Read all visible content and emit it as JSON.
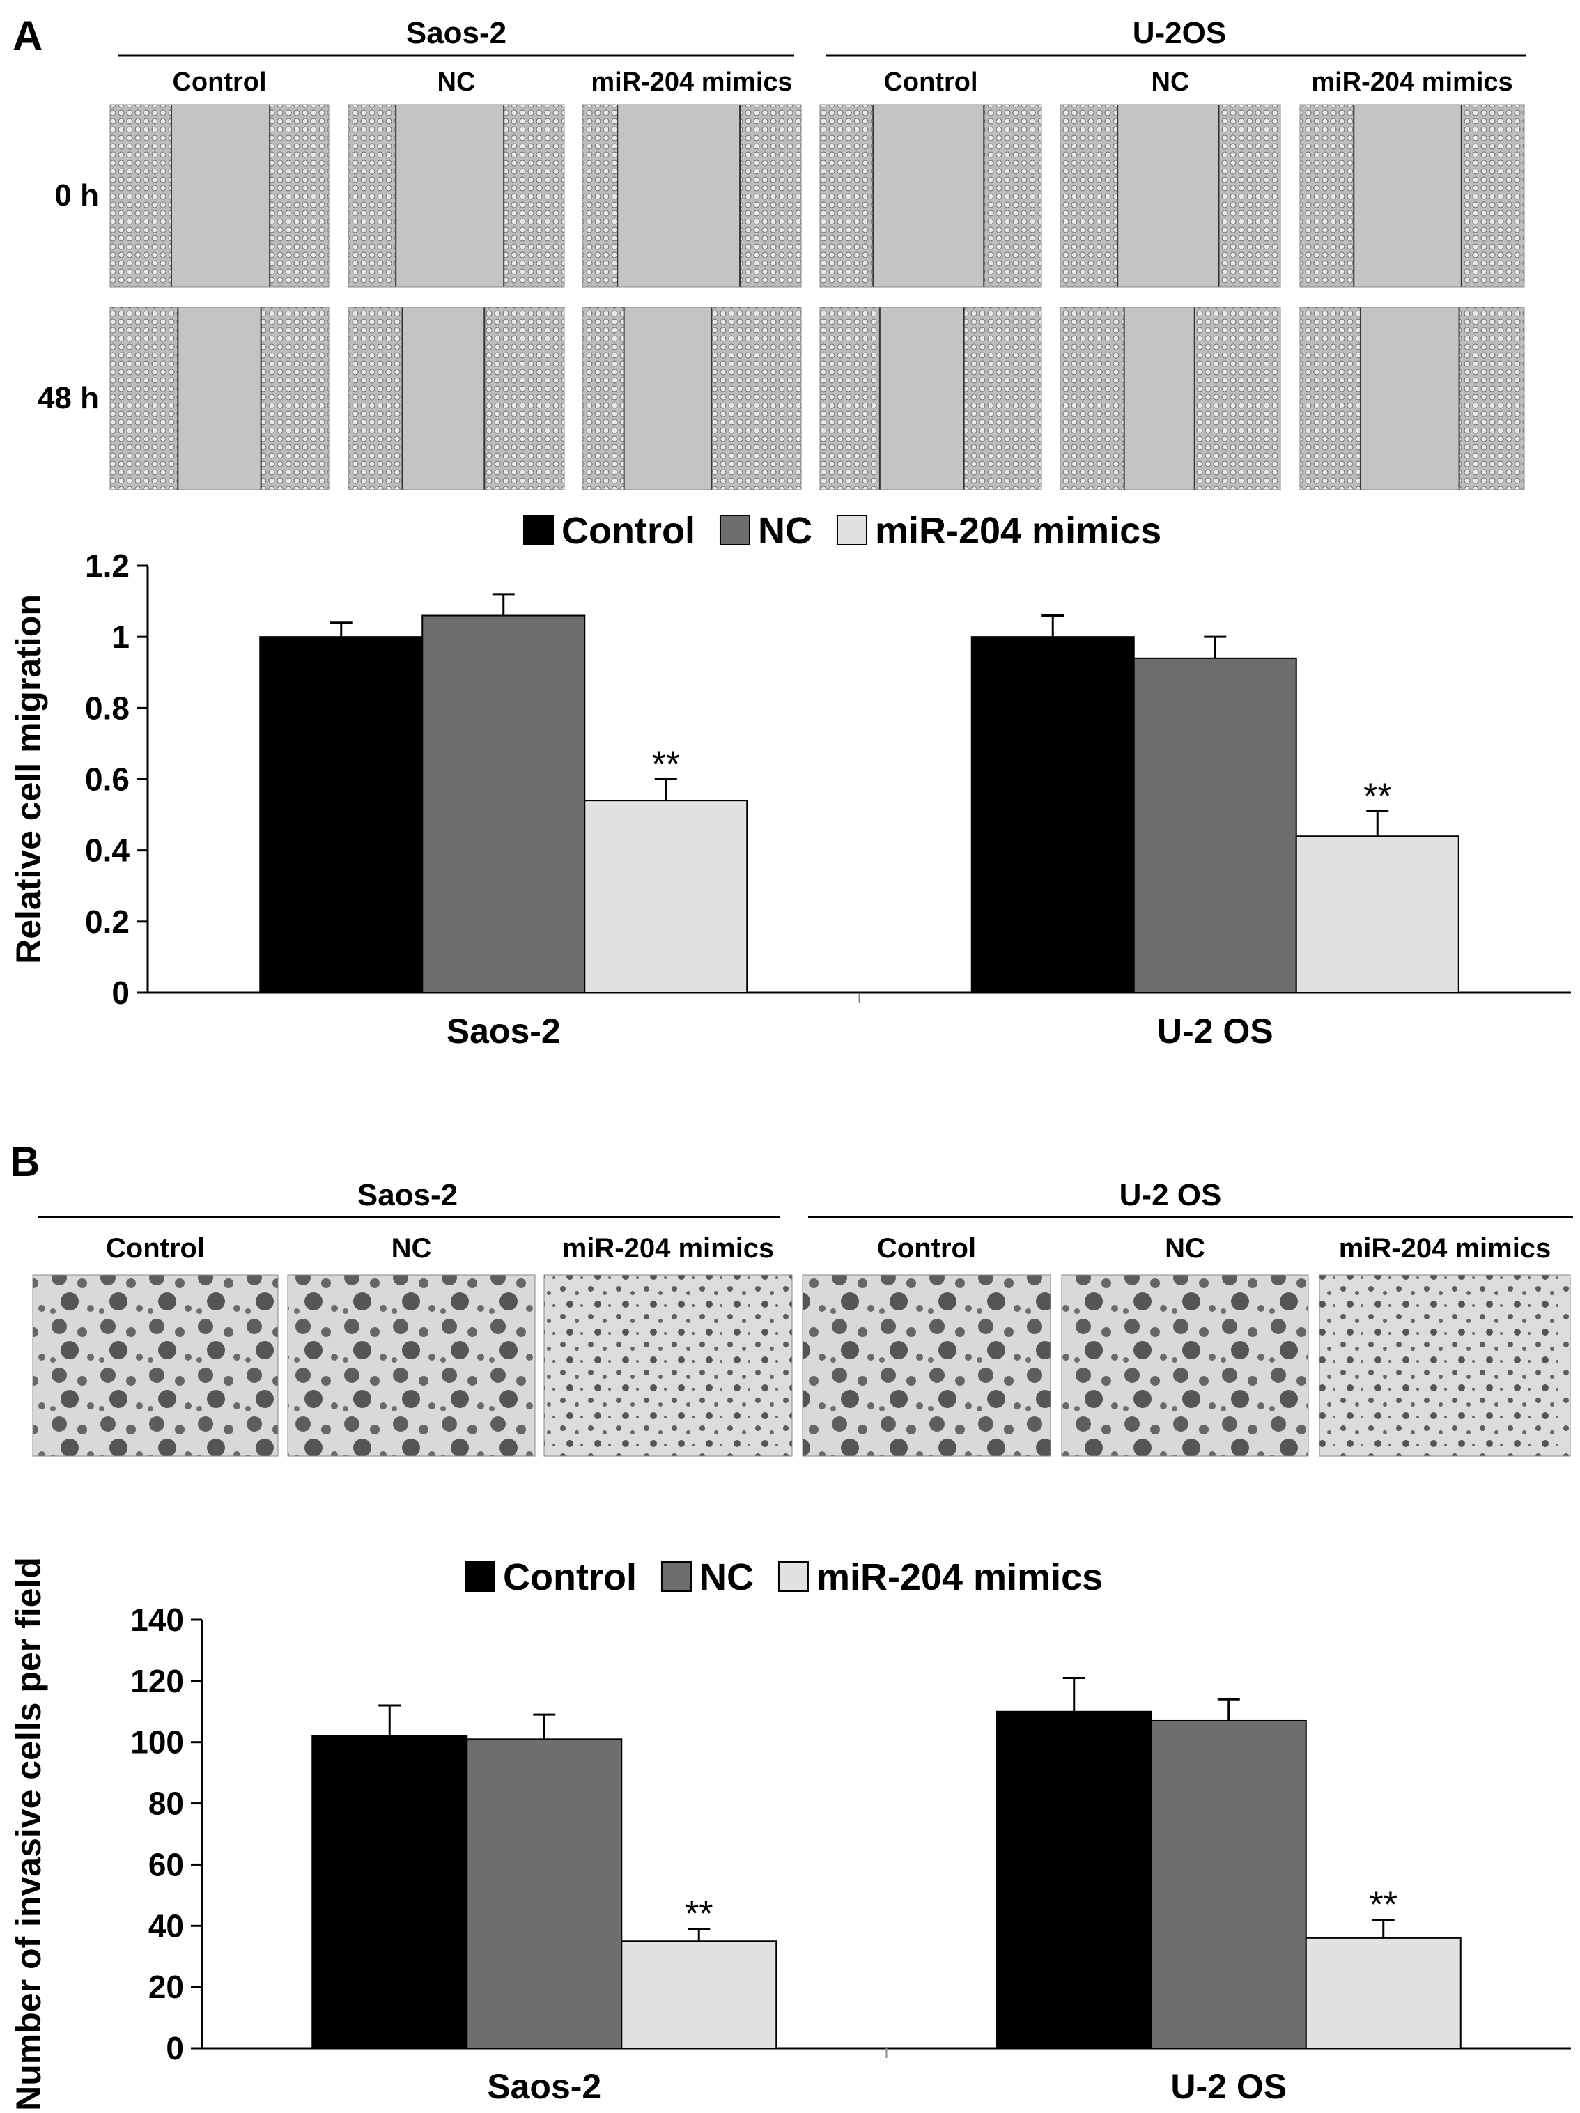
{
  "panels": [
    {
      "letter": "A",
      "groups": [
        {
          "name": "Saos-2",
          "conditions": [
            "Control",
            "NC",
            "miR-204 mimics"
          ]
        },
        {
          "name": "U-2OS",
          "conditions": [
            "Control",
            "NC",
            "miR-204 mimics"
          ]
        }
      ],
      "row_labels": [
        "0 h",
        "48 h"
      ]
    },
    {
      "letter": "B",
      "groups": [
        {
          "name": "Saos-2",
          "conditions": [
            "Control",
            "NC",
            "miR-204 mimics"
          ]
        },
        {
          "name": "U-2 OS",
          "conditions": [
            "Control",
            "NC",
            "miR-204 mimics"
          ]
        }
      ]
    }
  ],
  "colors": {
    "Control": "#000000",
    "NC": "#6e6e6e",
    "miR-204 mimics": "#e2e2e2",
    "micrograph_scratch": "#c4c4c4",
    "micrograph_invasion": "#d8d8d8"
  },
  "chart_data": [
    {
      "type": "bar",
      "ylabel": "Relative cell migration",
      "categories": [
        "Saos-2",
        "U-2 OS"
      ],
      "ylim": [
        0,
        1.2
      ],
      "yticks": [
        0,
        0.2,
        0.4,
        0.6,
        0.8,
        1,
        1.2
      ],
      "ytick_labels": [
        "0",
        "0.2",
        "0.4",
        "0.6",
        "0.8",
        "1",
        "1.2"
      ],
      "legend_position": "top-center",
      "series": [
        {
          "name": "Control",
          "values": [
            1.0,
            1.0
          ],
          "errors": [
            0.04,
            0.06
          ]
        },
        {
          "name": "NC",
          "values": [
            1.06,
            0.94
          ],
          "errors": [
            0.06,
            0.06
          ]
        },
        {
          "name": "miR-204 mimics",
          "values": [
            0.54,
            0.44
          ],
          "errors": [
            0.06,
            0.07
          ]
        }
      ],
      "annotations": [
        {
          "category": "Saos-2",
          "series": "miR-204 mimics",
          "text": "**"
        },
        {
          "category": "U-2 OS",
          "series": "miR-204 mimics",
          "text": "**"
        }
      ]
    },
    {
      "type": "bar",
      "ylabel": "Number of invasive cells per field",
      "categories": [
        "Saos-2",
        "U-2 OS"
      ],
      "ylim": [
        0,
        140
      ],
      "yticks": [
        0,
        20,
        40,
        60,
        80,
        100,
        120,
        140
      ],
      "ytick_labels": [
        "0",
        "20",
        "40",
        "60",
        "80",
        "100",
        "120",
        "140"
      ],
      "legend_position": "top-center",
      "series": [
        {
          "name": "Control",
          "values": [
            102,
            110
          ],
          "errors": [
            10,
            11
          ]
        },
        {
          "name": "NC",
          "values": [
            101,
            107
          ],
          "errors": [
            8,
            7
          ]
        },
        {
          "name": "miR-204 mimics",
          "values": [
            35,
            36
          ],
          "errors": [
            4,
            6
          ]
        }
      ],
      "annotations": [
        {
          "category": "Saos-2",
          "series": "miR-204 mimics",
          "text": "**"
        },
        {
          "category": "U-2 OS",
          "series": "miR-204 mimics",
          "text": "**"
        }
      ]
    }
  ]
}
